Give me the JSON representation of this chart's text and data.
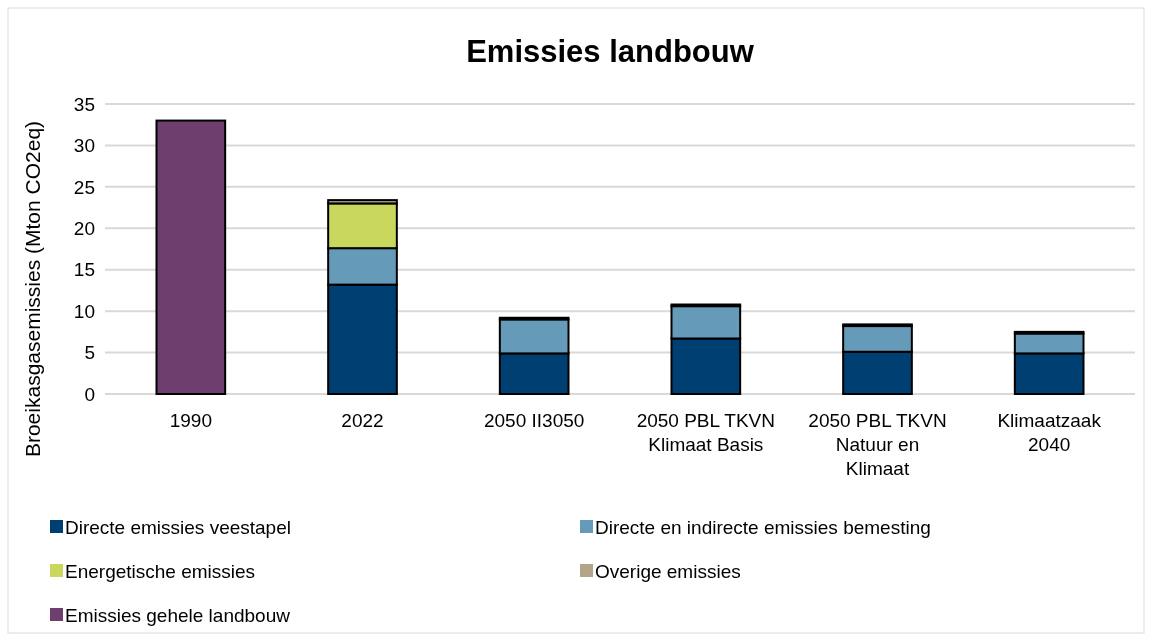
{
  "chart_data": {
    "type": "bar",
    "title": "Emissies landbouw",
    "ylabel": "Broeikasgasemissies (Mton CO2eq)",
    "categories": [
      "1990",
      "2022",
      "2050 II3050",
      "2050 PBL TKVN Klimaat Basis",
      "2050 PBL TKVN Natuur en Klimaat",
      "Klimaatzaak 2040"
    ],
    "stacked": true,
    "series": [
      {
        "name": "Directe emissies veestapel",
        "color": "#003f72",
        "values": [
          null,
          13.2,
          4.9,
          6.7,
          5.1,
          4.9
        ]
      },
      {
        "name": "Directe en indirecte emissies bemesting",
        "color": "#659bb9",
        "values": [
          null,
          4.4,
          4.1,
          3.9,
          3.1,
          2.4
        ]
      },
      {
        "name": "Energetische emissies",
        "color": "#c9d85c",
        "values": [
          null,
          5.4,
          null,
          null,
          null,
          null
        ]
      },
      {
        "name": "Overige emissies",
        "color": "#b3a58a",
        "values": [
          null,
          0.4,
          0.2,
          0.2,
          0.2,
          0.2
        ]
      },
      {
        "name": "Emissies gehele landbouw",
        "color": "#6e3f6e",
        "values": [
          33,
          null,
          null,
          null,
          null,
          null
        ]
      }
    ],
    "ylim": [
      0,
      35
    ],
    "yticks": [
      0,
      5,
      10,
      15,
      20,
      25,
      30,
      35
    ],
    "grid": "y",
    "legend": "bottom"
  }
}
